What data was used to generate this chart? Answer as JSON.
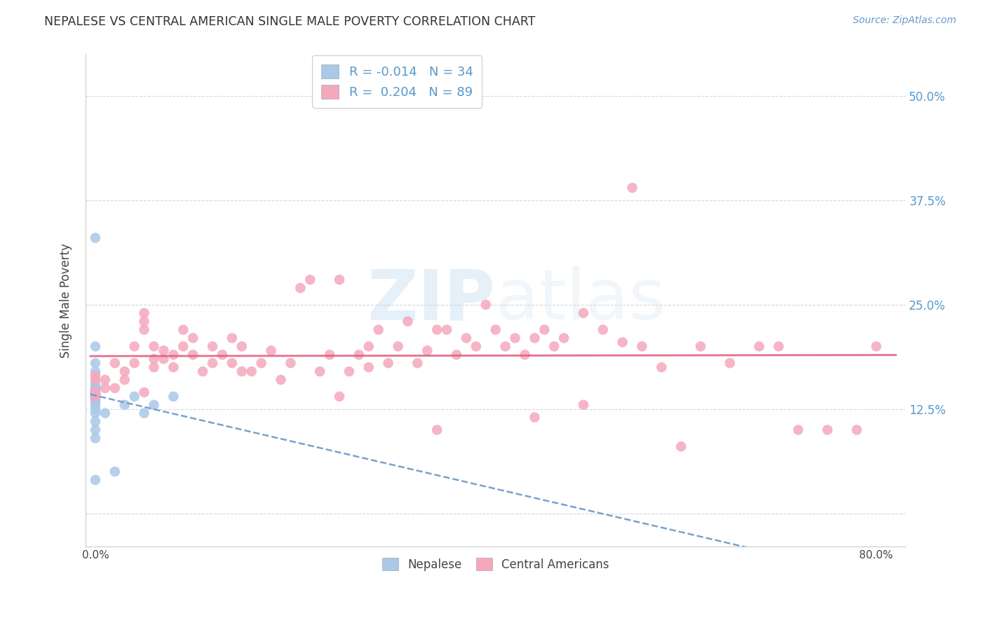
{
  "title": "NEPALESE VS CENTRAL AMERICAN SINGLE MALE POVERTY CORRELATION CHART",
  "source": "Source: ZipAtlas.com",
  "ylabel": "Single Male Poverty",
  "x_ticks": [
    0.0,
    0.1,
    0.2,
    0.3,
    0.4,
    0.5,
    0.6,
    0.7,
    0.8
  ],
  "x_tick_labels": [
    "0.0%",
    "",
    "",
    "",
    "",
    "",
    "",
    "",
    "80.0%"
  ],
  "y_ticks": [
    0.0,
    0.125,
    0.25,
    0.375,
    0.5
  ],
  "y_tick_labels": [
    "",
    "12.5%",
    "25.0%",
    "37.5%",
    "50.0%"
  ],
  "xlim": [
    -0.01,
    0.83
  ],
  "ylim": [
    -0.04,
    0.55
  ],
  "background_color": "#ffffff",
  "grid_color": "#d8d8d8",
  "legend_R1": "-0.014",
  "legend_N1": "34",
  "legend_R2": "0.204",
  "legend_N2": "89",
  "nepalese_color": "#aac8e8",
  "central_color": "#f5a8bc",
  "nepalese_line_color": "#6699cc",
  "central_line_color": "#e06080",
  "nepalese_x": [
    0.0,
    0.0,
    0.0,
    0.0,
    0.0,
    0.0,
    0.0,
    0.0,
    0.0,
    0.0,
    0.0,
    0.0,
    0.0,
    0.0,
    0.0,
    0.0,
    0.0,
    0.0,
    0.0,
    0.0,
    0.0,
    0.0,
    0.0,
    0.0,
    0.0,
    0.0,
    0.0,
    0.01,
    0.02,
    0.03,
    0.04,
    0.05,
    0.06,
    0.08
  ],
  "nepalese_y": [
    0.33,
    0.2,
    0.18,
    0.17,
    0.155,
    0.15,
    0.15,
    0.148,
    0.145,
    0.145,
    0.145,
    0.143,
    0.143,
    0.142,
    0.14,
    0.14,
    0.14,
    0.138,
    0.135,
    0.135,
    0.13,
    0.125,
    0.12,
    0.11,
    0.1,
    0.09,
    0.04,
    0.12,
    0.05,
    0.13,
    0.14,
    0.12,
    0.13,
    0.14
  ],
  "central_x": [
    0.0,
    0.0,
    0.0,
    0.0,
    0.0,
    0.01,
    0.01,
    0.02,
    0.02,
    0.03,
    0.03,
    0.04,
    0.04,
    0.05,
    0.05,
    0.05,
    0.06,
    0.06,
    0.07,
    0.08,
    0.09,
    0.09,
    0.1,
    0.1,
    0.11,
    0.12,
    0.12,
    0.13,
    0.14,
    0.14,
    0.15,
    0.16,
    0.17,
    0.18,
    0.19,
    0.2,
    0.21,
    0.22,
    0.23,
    0.24,
    0.25,
    0.26,
    0.27,
    0.28,
    0.28,
    0.29,
    0.3,
    0.31,
    0.32,
    0.33,
    0.34,
    0.35,
    0.36,
    0.37,
    0.38,
    0.39,
    0.4,
    0.41,
    0.42,
    0.43,
    0.44,
    0.45,
    0.46,
    0.47,
    0.48,
    0.5,
    0.52,
    0.54,
    0.55,
    0.56,
    0.58,
    0.6,
    0.62,
    0.65,
    0.68,
    0.7,
    0.72,
    0.75,
    0.78,
    0.8,
    0.5,
    0.45,
    0.35,
    0.25,
    0.15,
    0.08,
    0.07,
    0.06,
    0.05
  ],
  "central_y": [
    0.145,
    0.145,
    0.14,
    0.16,
    0.165,
    0.15,
    0.16,
    0.18,
    0.15,
    0.16,
    0.17,
    0.2,
    0.18,
    0.22,
    0.24,
    0.23,
    0.2,
    0.175,
    0.185,
    0.19,
    0.2,
    0.22,
    0.19,
    0.21,
    0.17,
    0.18,
    0.2,
    0.19,
    0.18,
    0.21,
    0.2,
    0.17,
    0.18,
    0.195,
    0.16,
    0.18,
    0.27,
    0.28,
    0.17,
    0.19,
    0.28,
    0.17,
    0.19,
    0.2,
    0.175,
    0.22,
    0.18,
    0.2,
    0.23,
    0.18,
    0.195,
    0.22,
    0.22,
    0.19,
    0.21,
    0.2,
    0.25,
    0.22,
    0.2,
    0.21,
    0.19,
    0.21,
    0.22,
    0.2,
    0.21,
    0.24,
    0.22,
    0.205,
    0.39,
    0.2,
    0.175,
    0.08,
    0.2,
    0.18,
    0.2,
    0.2,
    0.1,
    0.1,
    0.1,
    0.2,
    0.13,
    0.115,
    0.1,
    0.14,
    0.17,
    0.175,
    0.195,
    0.185,
    0.145
  ]
}
